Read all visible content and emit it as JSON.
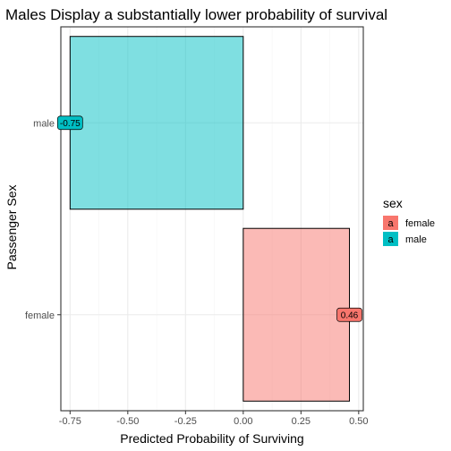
{
  "chart_data": {
    "type": "bar",
    "orientation": "horizontal",
    "title": "Males Display a substantially lower probability of survival",
    "xlabel": "Predicted Probability of Surviving",
    "ylabel": "Passenger Sex",
    "categories": [
      "female",
      "male"
    ],
    "values": [
      0.46,
      -0.75
    ],
    "data_labels": [
      "0.46",
      "-0.75"
    ],
    "xlim": [
      -0.79,
      0.52
    ],
    "x_ticks": [
      -0.75,
      -0.5,
      -0.25,
      0.0,
      0.25,
      0.5
    ],
    "x_tick_labels": [
      "-0.75",
      "-0.50",
      "-0.25",
      "0.00",
      "0.25",
      "0.50"
    ],
    "grid": true,
    "legend": {
      "title": "sex",
      "position": "right",
      "glyph_text": "a",
      "entries": [
        {
          "label": "female",
          "color": "#F8766D"
        },
        {
          "label": "male",
          "color": "#00BFC4"
        }
      ]
    },
    "colors": {
      "female": "#F8766D",
      "male": "#00BFC4",
      "panel_border": "#333333",
      "grid_major": "#ebebeb"
    }
  }
}
